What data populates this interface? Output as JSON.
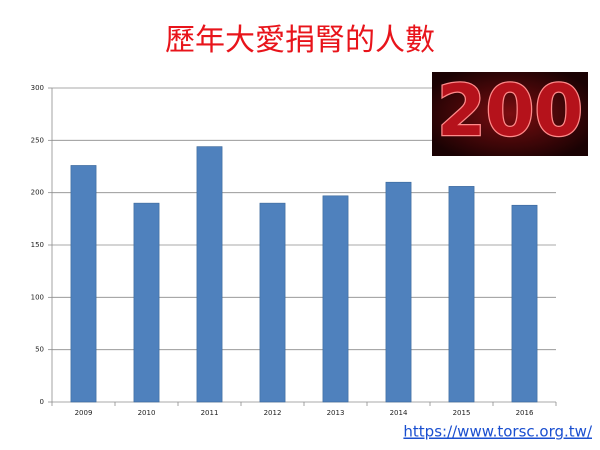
{
  "chart_data": {
    "type": "bar",
    "title": "歷年大愛捐腎的人數",
    "categories": [
      "2009",
      "2010",
      "2011",
      "2012",
      "2013",
      "2014",
      "2015",
      "2016"
    ],
    "values": [
      226,
      190,
      244,
      190,
      197,
      210,
      206,
      188
    ],
    "color": "#4f81bd",
    "ylim": [
      0,
      300
    ],
    "yticks": [
      0,
      50,
      100,
      150,
      200,
      250,
      300
    ],
    "grid": true,
    "annotation": "200",
    "source": "https://www.torsc.org.tw/"
  }
}
